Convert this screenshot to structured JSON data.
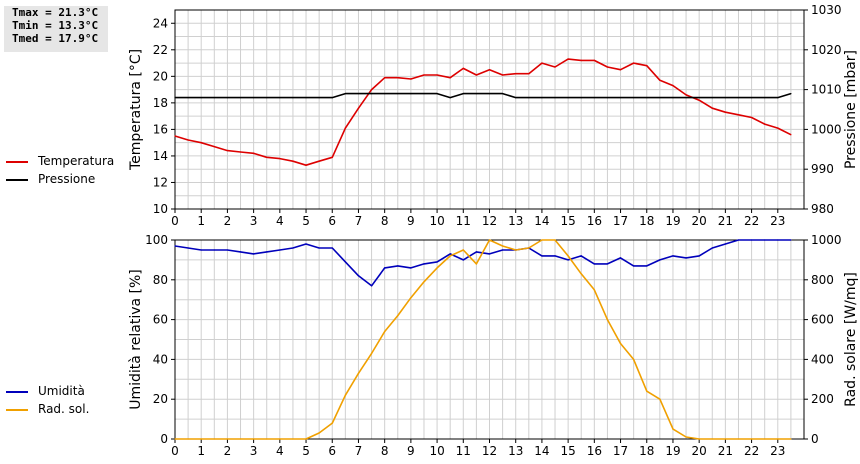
{
  "stats": {
    "tmax": "Tmax = 21.3°C",
    "tmin": "Tmin = 13.3°C",
    "tmed": "Tmed = 17.9°C"
  },
  "colors": {
    "temperature": "#dd0000",
    "pressure": "#000000",
    "humidity": "#0000bb",
    "solar": "#f0a000",
    "grid": "#d0d0d0"
  },
  "chart_data": [
    {
      "type": "line",
      "title": "",
      "xlabel": "",
      "ylabel": "Temperatura [°C]",
      "y2label": "Pressione [mbar]",
      "xlim": [
        0,
        24
      ],
      "ylim": [
        10,
        25
      ],
      "y2lim": [
        980,
        1030
      ],
      "grid": true,
      "legend_placement": "left",
      "x_ticks": [
        "0",
        "1",
        "2",
        "3",
        "4",
        "5",
        "6",
        "7",
        "8",
        "9",
        "10",
        "11",
        "12",
        "13",
        "14",
        "15",
        "16",
        "17",
        "18",
        "19",
        "20",
        "21",
        "22",
        "23"
      ],
      "y_ticks": [
        "10",
        "12",
        "14",
        "16",
        "18",
        "20",
        "22",
        "24"
      ],
      "y2_ticks": [
        "980",
        "990",
        "1000",
        "1010",
        "1020",
        "1030"
      ],
      "series": [
        {
          "name": "Temperatura",
          "axis": "left",
          "x": [
            0,
            0.5,
            1,
            1.5,
            2,
            2.5,
            3,
            3.5,
            4,
            4.5,
            5,
            5.5,
            6,
            6.5,
            7,
            7.5,
            8,
            8.5,
            9,
            9.5,
            10,
            10.5,
            11,
            11.5,
            12,
            12.5,
            13,
            13.5,
            14,
            14.5,
            15,
            15.5,
            16,
            16.5,
            17,
            17.5,
            18,
            18.5,
            19,
            19.5,
            20,
            20.5,
            21,
            21.5,
            22,
            22.5,
            23,
            23.5
          ],
          "y": [
            15.5,
            15.2,
            15.0,
            14.7,
            14.4,
            14.3,
            14.2,
            13.9,
            13.8,
            13.6,
            13.3,
            13.6,
            13.9,
            16.1,
            17.6,
            19.0,
            19.9,
            19.9,
            19.8,
            20.1,
            20.1,
            19.9,
            20.6,
            20.1,
            20.5,
            20.1,
            20.2,
            20.2,
            21.0,
            20.7,
            21.3,
            21.2,
            21.2,
            20.7,
            20.5,
            21.0,
            20.8,
            19.7,
            19.3,
            18.6,
            18.2,
            17.6,
            17.3,
            17.1,
            16.9,
            16.4,
            16.1,
            15.6
          ]
        },
        {
          "name": "Pressione",
          "axis": "right",
          "x": [
            0,
            0.5,
            1,
            1.5,
            2,
            2.5,
            3,
            3.5,
            4,
            4.5,
            5,
            5.5,
            6,
            6.5,
            7,
            7.5,
            8,
            8.5,
            9,
            9.5,
            10,
            10.5,
            11,
            11.5,
            12,
            12.5,
            13,
            13.5,
            14,
            14.5,
            15,
            15.5,
            16,
            16.5,
            17,
            17.5,
            18,
            18.5,
            19,
            19.5,
            20,
            20.5,
            21,
            21.5,
            22,
            22.5,
            23,
            23.5
          ],
          "y": [
            1008,
            1008,
            1008,
            1008,
            1008,
            1008,
            1008,
            1008,
            1008,
            1008,
            1008,
            1008,
            1008,
            1009,
            1009,
            1009,
            1009,
            1009,
            1009,
            1009,
            1009,
            1008,
            1009,
            1009,
            1009,
            1009,
            1008,
            1008,
            1008,
            1008,
            1008,
            1008,
            1008,
            1008,
            1008,
            1008,
            1008,
            1008,
            1008,
            1008,
            1008,
            1008,
            1008,
            1008,
            1008,
            1008,
            1008,
            1009
          ]
        }
      ]
    },
    {
      "type": "line",
      "title": "",
      "xlabel": "",
      "ylabel": "Umidità relativa [%]",
      "y2label": "Rad. solare [W/mq]",
      "xlim": [
        0,
        24
      ],
      "ylim": [
        0,
        100
      ],
      "y2lim": [
        0,
        1000
      ],
      "grid": true,
      "legend_placement": "left",
      "x_ticks": [
        "0",
        "1",
        "2",
        "3",
        "4",
        "5",
        "6",
        "7",
        "8",
        "9",
        "10",
        "11",
        "12",
        "13",
        "14",
        "15",
        "16",
        "17",
        "18",
        "19",
        "20",
        "21",
        "22",
        "23"
      ],
      "y_ticks": [
        "0",
        "20",
        "40",
        "60",
        "80",
        "100"
      ],
      "y2_ticks": [
        "0",
        "200",
        "400",
        "600",
        "800",
        "1000"
      ],
      "series": [
        {
          "name": "Umidità",
          "axis": "left",
          "x": [
            0,
            0.5,
            1,
            1.5,
            2,
            2.5,
            3,
            3.5,
            4,
            4.5,
            5,
            5.5,
            6,
            6.5,
            7,
            7.5,
            8,
            8.5,
            9,
            9.5,
            10,
            10.5,
            11,
            11.5,
            12,
            12.5,
            13,
            13.5,
            14,
            14.5,
            15,
            15.5,
            16,
            16.5,
            17,
            17.5,
            18,
            18.5,
            19,
            19.5,
            20,
            20.5,
            21,
            21.5,
            22,
            22.5,
            23,
            23.5
          ],
          "y": [
            97,
            96,
            95,
            95,
            95,
            94,
            93,
            94,
            95,
            96,
            98,
            96,
            96,
            89,
            82,
            77,
            86,
            87,
            86,
            88,
            89,
            93,
            90,
            94,
            93,
            95,
            95,
            96,
            92,
            92,
            90,
            92,
            88,
            88,
            91,
            87,
            87,
            90,
            92,
            91,
            92,
            96,
            98,
            100,
            100,
            100,
            100,
            100
          ]
        },
        {
          "name": "Rad. sol.",
          "axis": "right",
          "x": [
            0,
            0.5,
            1,
            1.5,
            2,
            2.5,
            3,
            3.5,
            4,
            4.5,
            5,
            5.5,
            6,
            6.5,
            7,
            7.5,
            8,
            8.5,
            9,
            9.5,
            10,
            10.5,
            11,
            11.5,
            12,
            12.5,
            13,
            13.5,
            14,
            14.5,
            15,
            15.5,
            16,
            16.5,
            17,
            17.5,
            18,
            18.5,
            19,
            19.5,
            20,
            20.5,
            21,
            21.5,
            22,
            22.5,
            23,
            23.5
          ],
          "y": [
            0,
            0,
            0,
            0,
            0,
            0,
            0,
            0,
            0,
            0,
            0,
            30,
            80,
            220,
            330,
            430,
            540,
            620,
            710,
            790,
            860,
            920,
            950,
            880,
            1010,
            970,
            950,
            960,
            1010,
            1000,
            920,
            830,
            750,
            600,
            480,
            400,
            240,
            200,
            50,
            10,
            0,
            0,
            0,
            0,
            0,
            0,
            0,
            0
          ]
        }
      ]
    }
  ],
  "legend": {
    "temp_label": "Temperatura",
    "press_label": "Pressione",
    "hum_label": "Umidità",
    "solar_label": "Rad. sol."
  }
}
